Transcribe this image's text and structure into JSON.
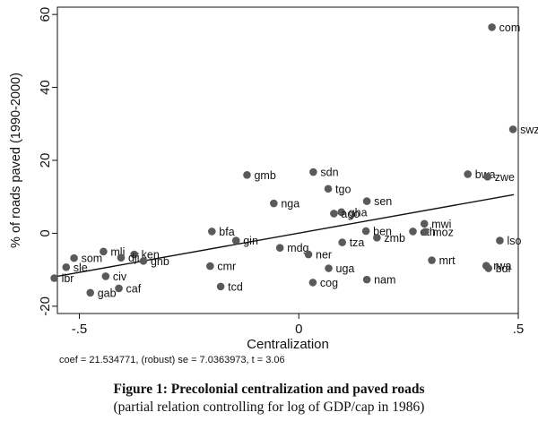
{
  "caption": {
    "title": "Figure 1: Precolonial centralization and paved roads",
    "subtitle": "(partial relation controlling for log of GDP/cap in 1986)"
  },
  "chart_data": {
    "type": "scatter",
    "title": "",
    "xlabel": "Centralization",
    "ylabel": "% of roads paved (1990-2000)",
    "xlim": [
      -0.55,
      0.5
    ],
    "ylim": [
      -22,
      62
    ],
    "x_ticks": [
      {
        "value": -0.5,
        "label": "-.5"
      },
      {
        "value": 0,
        "label": "0"
      },
      {
        "value": 0.5,
        "label": ".5"
      }
    ],
    "y_ticks": [
      {
        "value": 60,
        "label": "60"
      },
      {
        "value": 40,
        "label": "40"
      },
      {
        "value": 20,
        "label": "20"
      },
      {
        "value": 0,
        "label": "0"
      },
      {
        "value": -20,
        "label": "-20"
      }
    ],
    "grid": false,
    "legend": "none",
    "marker_color": "#5a5a5a",
    "line_color": "#111111",
    "points": [
      {
        "label": "com",
        "x": 0.44,
        "y": 56.5
      },
      {
        "label": "swz",
        "x": 0.488,
        "y": 28.5
      },
      {
        "label": "bwa",
        "x": 0.385,
        "y": 16.2
      },
      {
        "label": "zwe",
        "x": 0.43,
        "y": 15.5
      },
      {
        "label": "sdn",
        "x": 0.033,
        "y": 16.8
      },
      {
        "label": "gmb",
        "x": -0.118,
        "y": 16
      },
      {
        "label": "tgo",
        "x": 0.067,
        "y": 12.2
      },
      {
        "label": "sen",
        "x": 0.155,
        "y": 8.8
      },
      {
        "label": "nga",
        "x": -0.057,
        "y": 8.2
      },
      {
        "label": "gha",
        "x": 0.097,
        "y": 5.8
      },
      {
        "label": "ago",
        "x": 0.08,
        "y": 5.4
      },
      {
        "label": "mwi",
        "x": 0.286,
        "y": 2.6
      },
      {
        "label": "bfa",
        "x": -0.198,
        "y": 0.5
      },
      {
        "label": "ben",
        "x": 0.153,
        "y": 0.6
      },
      {
        "label": "eth",
        "x": 0.26,
        "y": 0.5
      },
      {
        "label": "moz",
        "x": 0.288,
        "y": 0.4
      },
      {
        "label": "zmb",
        "x": 0.178,
        "y": -1.2
      },
      {
        "label": "gin",
        "x": -0.143,
        "y": -2
      },
      {
        "label": "tza",
        "x": 0.099,
        "y": -2.5
      },
      {
        "label": "lso",
        "x": 0.458,
        "y": -2
      },
      {
        "label": "mdg",
        "x": -0.043,
        "y": -4
      },
      {
        "label": "mli",
        "x": -0.445,
        "y": -5
      },
      {
        "label": "ken",
        "x": -0.375,
        "y": -5.8
      },
      {
        "label": "ner",
        "x": 0.022,
        "y": -5.8
      },
      {
        "label": "dji",
        "x": -0.405,
        "y": -6.7
      },
      {
        "label": "som",
        "x": -0.512,
        "y": -6.8
      },
      {
        "label": "gnb",
        "x": -0.354,
        "y": -7.6
      },
      {
        "label": "mrt",
        "x": 0.303,
        "y": -7.4
      },
      {
        "label": "sle",
        "x": -0.53,
        "y": -9.3
      },
      {
        "label": "cmr",
        "x": -0.202,
        "y": -9
      },
      {
        "label": "uga",
        "x": 0.068,
        "y": -9.6
      },
      {
        "label": "rwa",
        "x": 0.427,
        "y": -8.9
      },
      {
        "label": "bdi",
        "x": 0.432,
        "y": -9.6
      },
      {
        "label": "civ",
        "x": -0.44,
        "y": -11.8
      },
      {
        "label": "lbr",
        "x": -0.557,
        "y": -12.3
      },
      {
        "label": "nam",
        "x": 0.155,
        "y": -12.7
      },
      {
        "label": "cog",
        "x": 0.032,
        "y": -13.5
      },
      {
        "label": "caf",
        "x": -0.41,
        "y": -15.1
      },
      {
        "label": "tcd",
        "x": -0.178,
        "y": -14.6
      },
      {
        "label": "gab",
        "x": -0.475,
        "y": -16.3
      }
    ],
    "fit_line": {
      "x": [
        -0.55,
        0.49
      ],
      "y": [
        -11.8,
        10.6
      ]
    },
    "annotation": "coef = 21.534771, (robust) se = 7.0363973, t = 3.06"
  }
}
